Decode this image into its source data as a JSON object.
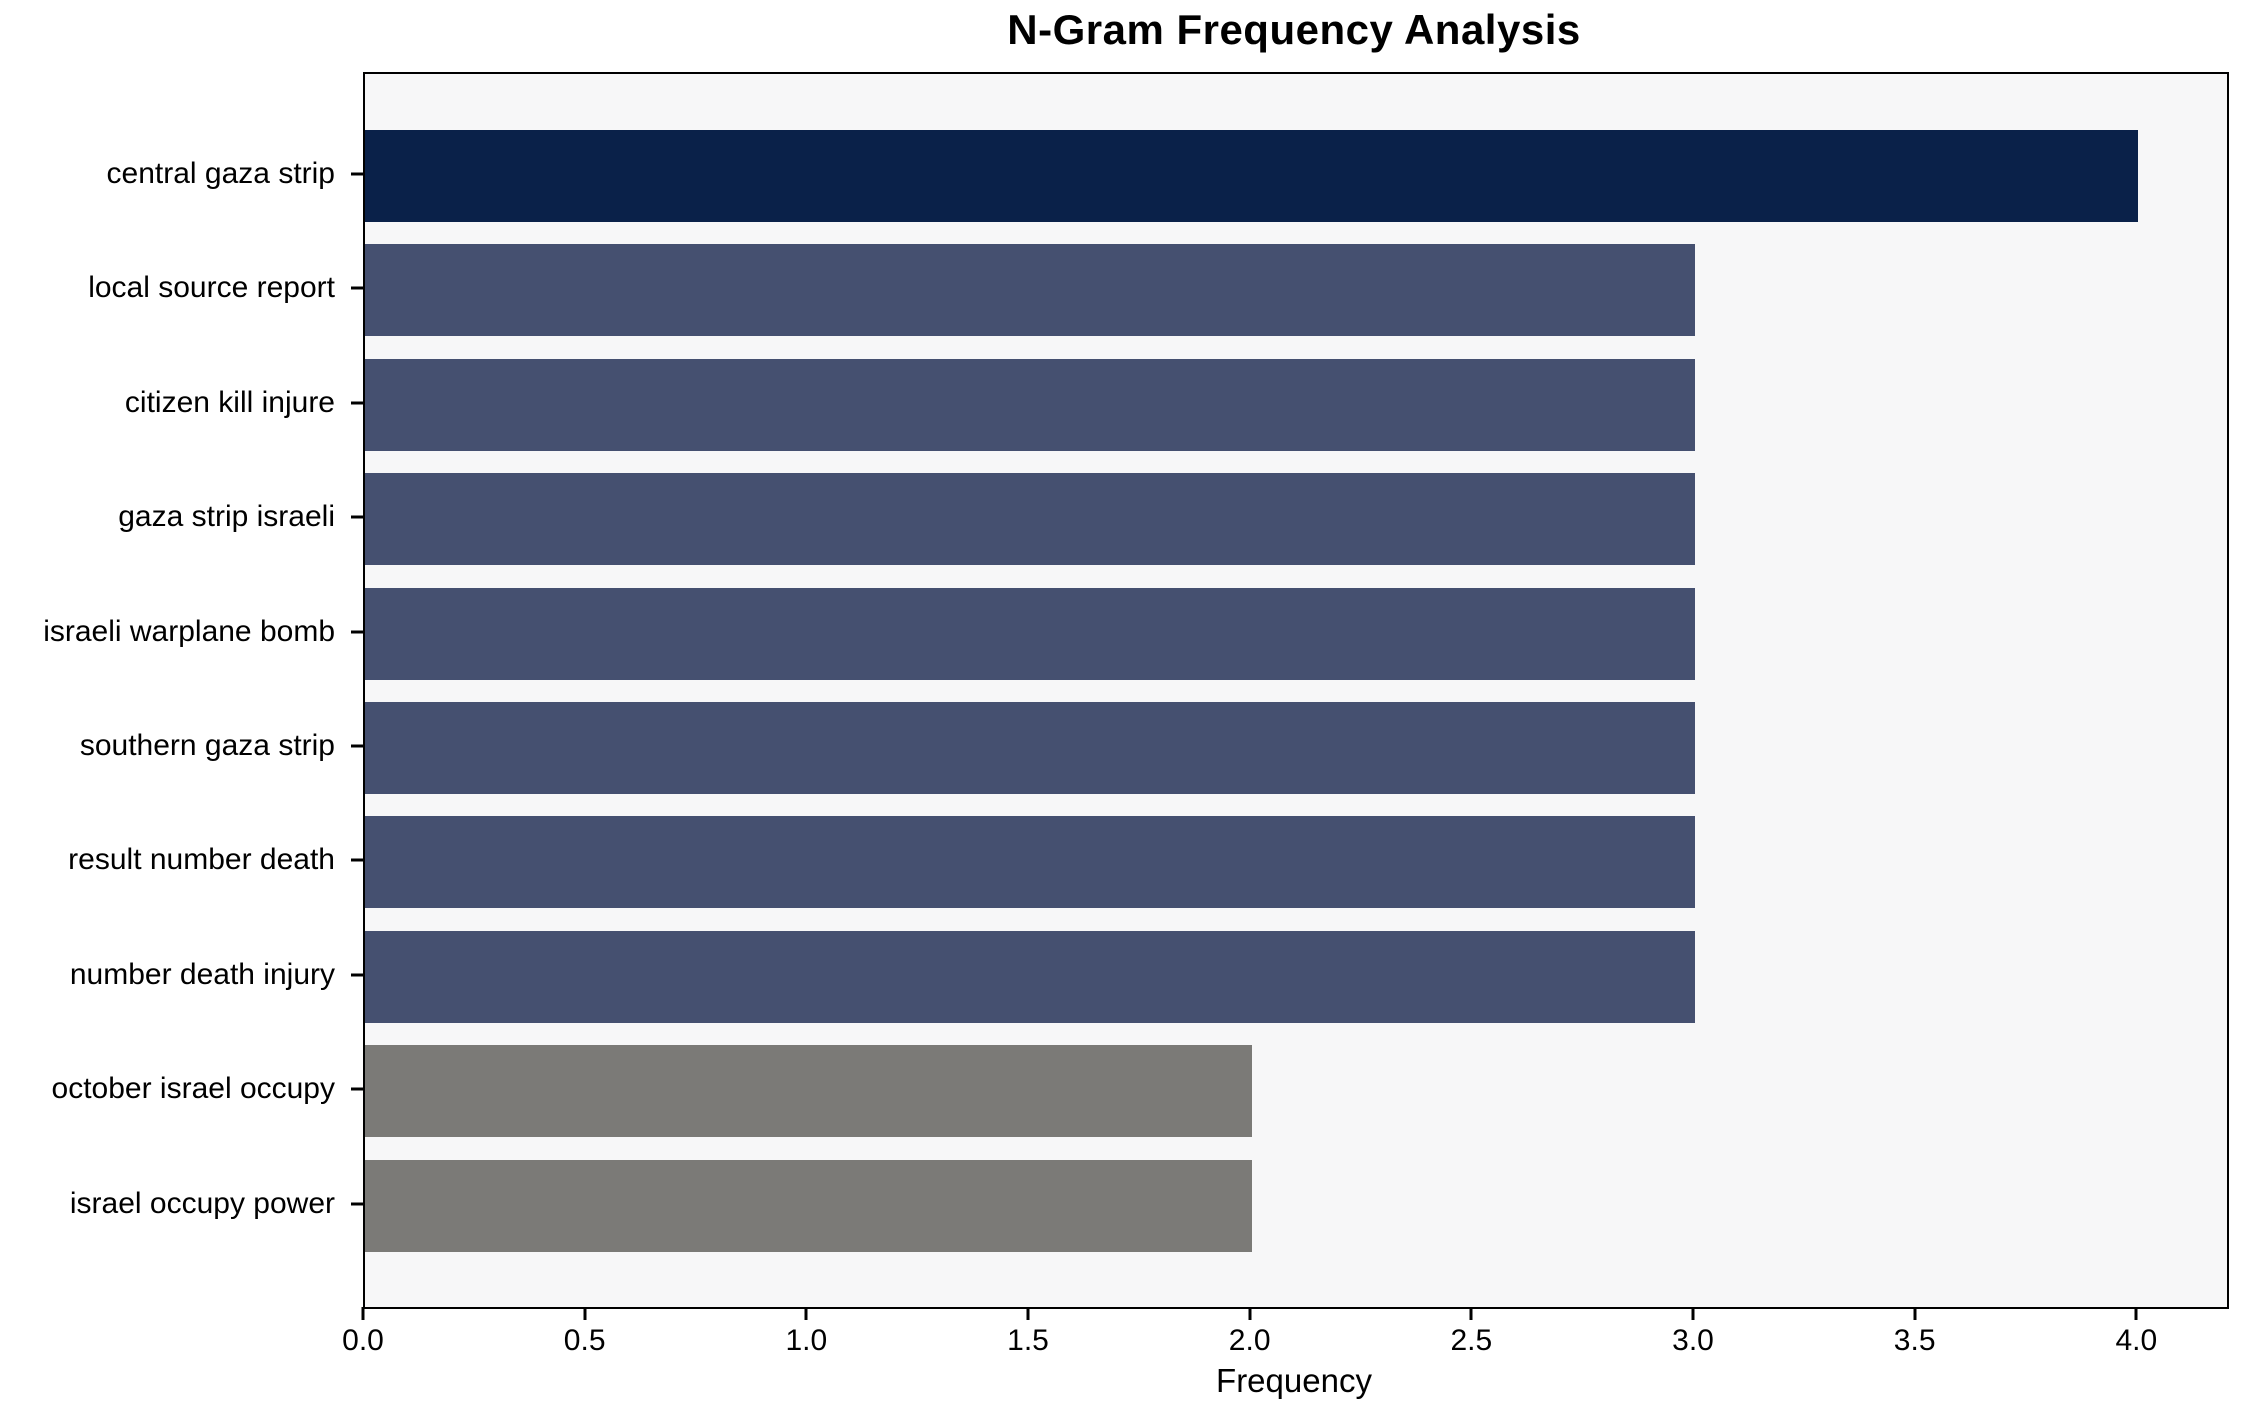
{
  "chart_data": {
    "type": "bar",
    "orientation": "horizontal",
    "title": "N-Gram Frequency Analysis",
    "xlabel": "Frequency",
    "ylabel": "",
    "categories": [
      "central gaza strip",
      "local source report",
      "citizen kill injure",
      "gaza strip israeli",
      "israeli warplane bomb",
      "southern gaza strip",
      "result number death",
      "number death injury",
      "october israel occupy",
      "israel occupy power"
    ],
    "values": [
      4,
      3,
      3,
      3,
      3,
      3,
      3,
      3,
      2,
      2
    ],
    "bar_colors": [
      "#0a2149",
      "#455070",
      "#455070",
      "#455070",
      "#455070",
      "#455070",
      "#455070",
      "#455070",
      "#7b7a77",
      "#7b7a77"
    ],
    "xlim": [
      0,
      4.2
    ],
    "xticks": [
      0.0,
      0.5,
      1.0,
      1.5,
      2.0,
      2.5,
      3.0,
      3.5,
      4.0
    ],
    "xtick_labels": [
      "0.0",
      "0.5",
      "1.0",
      "1.5",
      "2.0",
      "2.5",
      "3.0",
      "3.5",
      "4.0"
    ],
    "grid": false,
    "legend": null,
    "plot_background": "#f7f7f8",
    "page_background": "#ffffff",
    "spine_color": "#000000"
  }
}
